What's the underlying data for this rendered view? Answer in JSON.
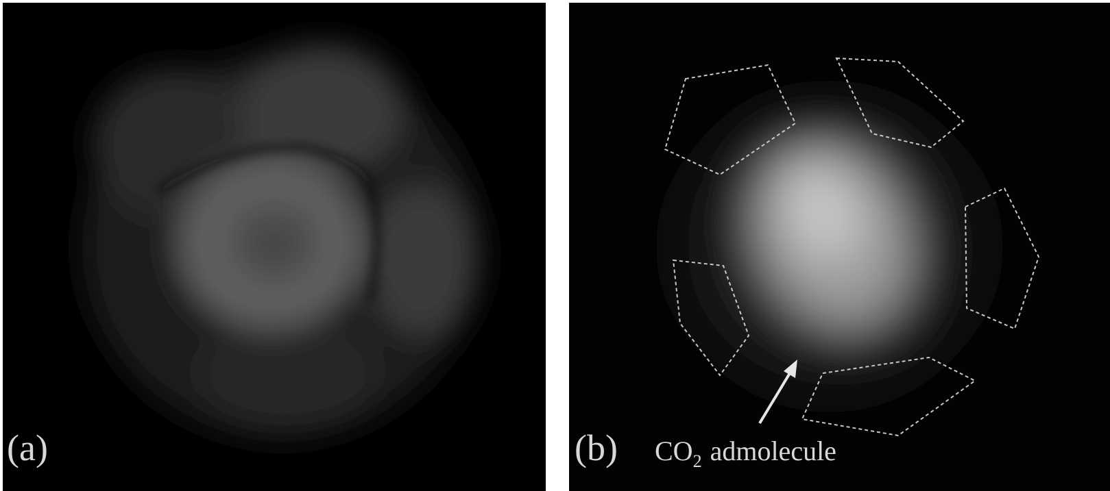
{
  "panels": [
    {
      "label": "(a)"
    },
    {
      "label": "(b)",
      "annotation": {
        "main": "CO",
        "sub": "2",
        "rest": "admolecule"
      }
    }
  ]
}
